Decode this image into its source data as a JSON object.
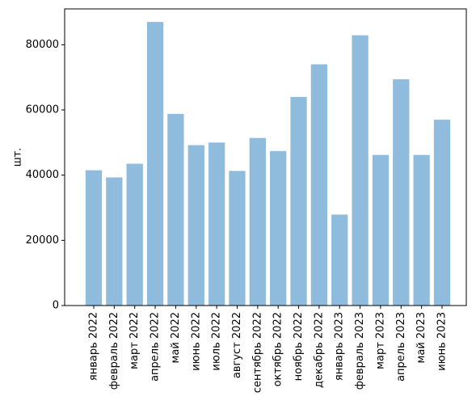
{
  "chart_data": {
    "type": "bar",
    "title": "",
    "xlabel": "",
    "ylabel": "шт.",
    "categories": [
      "январь 2022",
      "февраль 2022",
      "март 2022",
      "апрель 2022",
      "май 2022",
      "июнь 2022",
      "июль 2022",
      "август 2022",
      "сентябрь 2022",
      "октябрь 2022",
      "ноябрь 2022",
      "декабрь 2022",
      "январь 2023",
      "февраль 2023",
      "март 2023",
      "апрель 2023",
      "май 2023",
      "июнь 2023"
    ],
    "values": [
      41500,
      39300,
      43500,
      87000,
      58800,
      49200,
      50000,
      41300,
      51400,
      47400,
      64000,
      74000,
      27900,
      82900,
      46200,
      69400,
      46200,
      57000
    ],
    "ylim": [
      0,
      91000
    ],
    "yticks": [
      0,
      20000,
      40000,
      60000,
      80000
    ],
    "yticklabels": [
      "0",
      "20000",
      "40000",
      "60000",
      "80000"
    ],
    "bar_color": "#8fbbdc",
    "grid": false,
    "legend": "none"
  }
}
